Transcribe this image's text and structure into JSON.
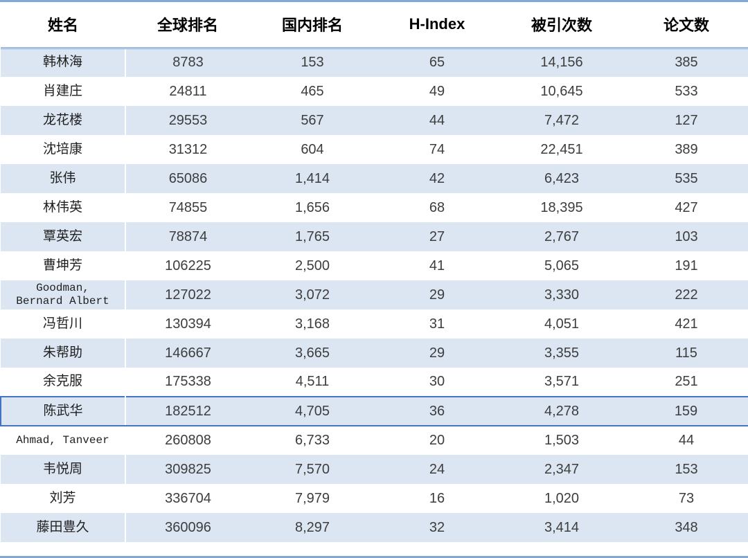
{
  "chart_data": {
    "type": "table",
    "title": "",
    "columns": [
      {
        "key": "name",
        "label": "姓名"
      },
      {
        "key": "global_rank",
        "label": "全球排名"
      },
      {
        "key": "domestic_rank",
        "label": "国内排名"
      },
      {
        "key": "h_index",
        "label": "H-Index"
      },
      {
        "key": "citations",
        "label": "被引次数"
      },
      {
        "key": "papers",
        "label": "论文数"
      }
    ],
    "rows": [
      {
        "name": "韩林海",
        "global_rank": "8783",
        "domestic_rank": "153",
        "h_index": "65",
        "citations": "14,156",
        "papers": "385",
        "highlighted": false
      },
      {
        "name": "肖建庄",
        "global_rank": "24811",
        "domestic_rank": "465",
        "h_index": "49",
        "citations": "10,645",
        "papers": "533",
        "highlighted": false
      },
      {
        "name": "龙花楼",
        "global_rank": "29553",
        "domestic_rank": "567",
        "h_index": "44",
        "citations": "7,472",
        "papers": "127",
        "highlighted": false
      },
      {
        "name": "沈培康",
        "global_rank": "31312",
        "domestic_rank": "604",
        "h_index": "74",
        "citations": "22,451",
        "papers": "389",
        "highlighted": false
      },
      {
        "name": "张伟",
        "global_rank": "65086",
        "domestic_rank": "1,414",
        "h_index": "42",
        "citations": "6,423",
        "papers": "535",
        "highlighted": false
      },
      {
        "name": "林伟英",
        "global_rank": "74855",
        "domestic_rank": "1,656",
        "h_index": "68",
        "citations": "18,395",
        "papers": "427",
        "highlighted": false
      },
      {
        "name": "覃英宏",
        "global_rank": "78874",
        "domestic_rank": "1,765",
        "h_index": "27",
        "citations": "2,767",
        "papers": "103",
        "highlighted": false
      },
      {
        "name": "曹坤芳",
        "global_rank": "106225",
        "domestic_rank": "2,500",
        "h_index": "41",
        "citations": "5,065",
        "papers": "191",
        "highlighted": false
      },
      {
        "name": "Goodman,\nBernard Albert",
        "global_rank": "127022",
        "domestic_rank": "3,072",
        "h_index": "29",
        "citations": "3,330",
        "papers": "222",
        "highlighted": false
      },
      {
        "name": "冯哲川",
        "global_rank": "130394",
        "domestic_rank": "3,168",
        "h_index": "31",
        "citations": "4,051",
        "papers": "421",
        "highlighted": false
      },
      {
        "name": "朱帮助",
        "global_rank": "146667",
        "domestic_rank": "3,665",
        "h_index": "29",
        "citations": "3,355",
        "papers": "115",
        "highlighted": false
      },
      {
        "name": "余克服",
        "global_rank": "175338",
        "domestic_rank": "4,511",
        "h_index": "30",
        "citations": "3,571",
        "papers": "251",
        "highlighted": false
      },
      {
        "name": "陈武华",
        "global_rank": "182512",
        "domestic_rank": "4,705",
        "h_index": "36",
        "citations": "4,278",
        "papers": "159",
        "highlighted": true
      },
      {
        "name": "Ahmad, Tanveer",
        "global_rank": "260808",
        "domestic_rank": "6,733",
        "h_index": "20",
        "citations": "1,503",
        "papers": "44",
        "highlighted": false
      },
      {
        "name": "韦悦周",
        "global_rank": "309825",
        "domestic_rank": "7,570",
        "h_index": "24",
        "citations": "2,347",
        "papers": "153",
        "highlighted": false
      },
      {
        "name": "刘芳",
        "global_rank": "336704",
        "domestic_rank": "7,979",
        "h_index": "16",
        "citations": "1,020",
        "papers": "73",
        "highlighted": false
      },
      {
        "name": "藤田豊久",
        "global_rank": "360096",
        "domestic_rank": "8,297",
        "h_index": "32",
        "citations": "3,414",
        "papers": "348",
        "highlighted": false
      }
    ],
    "highlighted_row_name": "陈武华",
    "layout": {
      "stripe_pattern": "odd-rows-shaded",
      "grid": "none"
    }
  },
  "colors": {
    "row_stripe": "#dce6f2",
    "table_rule": "#7fa8d9",
    "highlight_border": "#4472c4",
    "body_text": "#3d3d3d"
  }
}
